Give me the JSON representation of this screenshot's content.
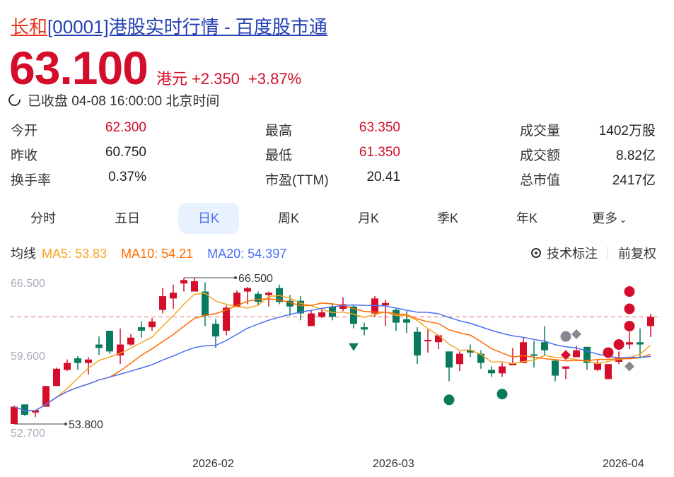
{
  "header": {
    "name": "长和",
    "rest": "[00001]港股实时行情 - 百度股市通"
  },
  "quote": {
    "price": "63.100",
    "currency": "港元",
    "change": "+2.350",
    "change_pct": "+3.87%",
    "status": "已收盘 04-08 16:00:00 北京时间"
  },
  "stats": [
    {
      "label": "今开",
      "value": "62.300",
      "color": "red"
    },
    {
      "label": "最高",
      "value": "63.350",
      "color": "red"
    },
    {
      "label": "成交量",
      "value": "1402万股",
      "color": "default"
    },
    {
      "label": "昨收",
      "value": "60.750",
      "color": "default"
    },
    {
      "label": "最低",
      "value": "61.350",
      "color": "red"
    },
    {
      "label": "成交额",
      "value": "8.82亿",
      "color": "default"
    },
    {
      "label": "换手率",
      "value": "0.37%",
      "color": "default"
    },
    {
      "label": "市盈(TTM)",
      "value": "20.41",
      "color": "default"
    },
    {
      "label": "总市值",
      "value": "2417亿",
      "color": "default"
    }
  ],
  "tabs": [
    {
      "label": "分时"
    },
    {
      "label": "五日"
    },
    {
      "label": "日K",
      "active": true
    },
    {
      "label": "周K"
    },
    {
      "label": "月K"
    },
    {
      "label": "季K"
    },
    {
      "label": "年K"
    },
    {
      "label": "更多"
    }
  ],
  "ma": {
    "label": "均线",
    "ma5": "MA5: 53.83",
    "ma10": "MA10: 54.21",
    "ma20": "MA20: 54.397"
  },
  "tools": {
    "annotate": "技术标注",
    "adjust": "前复权"
  },
  "colors": {
    "up": "#d40e2a",
    "down": "#0a7a5e",
    "ma5": "#f5a623",
    "ma10": "#ff6a00",
    "ma20": "#4a6ff5",
    "marker_gray": "#888890",
    "last_price_line": "#f0a0a0"
  },
  "chart_data": {
    "type": "candlestick",
    "y_ticks": [
      "66.500",
      "59.600",
      "52.700"
    ],
    "ylim": [
      52.7,
      66.5
    ],
    "x_ticks": [
      {
        "label": "2026-02",
        "index": 19
      },
      {
        "label": "2026-03",
        "index": 36
      },
      {
        "label": "2026-04",
        "index": 58
      }
    ],
    "high_label": {
      "text": "66.500",
      "index": 16,
      "price": 66.5
    },
    "low_label": {
      "text": "53.800",
      "index": 0,
      "price": 53.8
    },
    "last_close": 63.1,
    "candles_ohlc": [
      [
        53.8,
        55.4,
        53.8,
        55.3
      ],
      [
        55.5,
        55.5,
        54.5,
        54.6
      ],
      [
        54.8,
        55.0,
        54.4,
        55.0
      ],
      [
        55.3,
        57.1,
        55.3,
        57.1
      ],
      [
        57.1,
        58.7,
        57.1,
        58.6
      ],
      [
        58.5,
        59.4,
        58.4,
        59.1
      ],
      [
        59.5,
        59.7,
        58.5,
        59.1
      ],
      [
        59.1,
        59.6,
        58.1,
        59.4
      ],
      [
        60.7,
        61.4,
        59.8,
        60.4
      ],
      [
        61.9,
        61.9,
        59.9,
        60.1
      ],
      [
        59.75,
        62.1,
        59.0,
        60.7
      ],
      [
        60.7,
        61.6,
        60.6,
        61.3
      ],
      [
        62.2,
        62.7,
        61.3,
        61.9
      ],
      [
        62.2,
        63.0,
        61.9,
        62.7
      ],
      [
        63.7,
        65.6,
        63.4,
        64.9
      ],
      [
        64.7,
        65.9,
        63.8,
        65.2
      ],
      [
        66.0,
        66.5,
        65.3,
        66.3
      ],
      [
        65.3,
        66.5,
        65.3,
        66.2
      ],
      [
        65.3,
        66.1,
        62.3,
        63.2
      ],
      [
        62.5,
        62.9,
        60.4,
        61.4
      ],
      [
        61.9,
        64.1,
        61.5,
        63.9
      ],
      [
        64.0,
        65.4,
        64.0,
        65.2
      ],
      [
        65.3,
        65.7,
        64.2,
        65.6
      ],
      [
        65.1,
        65.3,
        64.1,
        64.4
      ],
      [
        65.0,
        65.3,
        64.0,
        65.2
      ],
      [
        65.6,
        65.9,
        64.2,
        64.4
      ],
      [
        64.5,
        65.0,
        63.2,
        64.0
      ],
      [
        64.5,
        64.9,
        62.8,
        63.4
      ],
      [
        62.3,
        63.7,
        62.3,
        63.4
      ],
      [
        63.1,
        63.7,
        63.0,
        63.5
      ],
      [
        64.0,
        64.3,
        62.8,
        63.1
      ],
      [
        63.8,
        64.8,
        63.6,
        64.2
      ],
      [
        64.0,
        64.1,
        62.1,
        62.5
      ],
      [
        62.2,
        62.6,
        61.5,
        62.0
      ],
      [
        63.4,
        64.9,
        63.1,
        64.7
      ],
      [
        64.1,
        64.6,
        62.3,
        64.3
      ],
      [
        63.7,
        63.8,
        61.9,
        62.6
      ],
      [
        62.9,
        63.6,
        61.7,
        62.6
      ],
      [
        61.8,
        62.2,
        59.0,
        59.75
      ],
      [
        61.0,
        62.0,
        60.0,
        61.1
      ],
      [
        60.9,
        61.5,
        60.3,
        61.5
      ],
      [
        60.1,
        60.1,
        57.5,
        58.7
      ],
      [
        59.0,
        60.1,
        58.4,
        59.9
      ],
      [
        60.2,
        60.7,
        59.6,
        60.0
      ],
      [
        59.9,
        60.2,
        58.6,
        59.1
      ],
      [
        58.5,
        58.8,
        57.9,
        58.2
      ],
      [
        58.2,
        59.1,
        57.9,
        58.8
      ],
      [
        58.9,
        60.4,
        58.9,
        59.1
      ],
      [
        59.1,
        61.3,
        59.1,
        60.9
      ],
      [
        59.85,
        61.0,
        58.7,
        59.75
      ],
      [
        60.9,
        62.3,
        59.75,
        60.2
      ],
      [
        59.3,
        59.4,
        57.5,
        58.0
      ],
      [
        58.6,
        58.8,
        57.7,
        58.8
      ],
      [
        59.6,
        60.6,
        59.6,
        60.2
      ],
      [
        60.5,
        60.5,
        58.5,
        59.1
      ],
      [
        58.5,
        59.4,
        58.4,
        59.1
      ],
      [
        57.7,
        59.0,
        57.7,
        59.0
      ],
      [
        59.2,
        60.1,
        59.0,
        59.6
      ],
      [
        60.7,
        61.8,
        60.3,
        60.9
      ],
      [
        60.9,
        62.1,
        59.6,
        60.7
      ],
      [
        62.3,
        63.35,
        61.35,
        63.1
      ]
    ],
    "markers": [
      {
        "shape": "triangle-down",
        "color": "down",
        "index": 32,
        "price": 60.5
      },
      {
        "shape": "circle",
        "color": "down",
        "index": 41,
        "price": 55.9
      },
      {
        "shape": "circle",
        "color": "down",
        "index": 46,
        "price": 56.4
      },
      {
        "shape": "circle",
        "color": "gray",
        "index": 52,
        "price": 61.4
      },
      {
        "shape": "diamond",
        "color": "gray",
        "index": 53,
        "price": 61.6
      },
      {
        "shape": "diamond",
        "color": "up",
        "index": 52,
        "price": 59.8
      },
      {
        "shape": "circle",
        "color": "up",
        "index": 56,
        "price": 60.0
      },
      {
        "shape": "circle",
        "color": "up",
        "index": 57,
        "price": 60.7
      },
      {
        "shape": "circle",
        "color": "up",
        "index": 58,
        "price": 62.3
      },
      {
        "shape": "circle",
        "color": "up",
        "index": 58,
        "price": 63.8
      },
      {
        "shape": "circle",
        "color": "up",
        "index": 58,
        "price": 65.3
      },
      {
        "shape": "diamond",
        "color": "gray",
        "index": 58,
        "price": 58.8
      }
    ]
  }
}
